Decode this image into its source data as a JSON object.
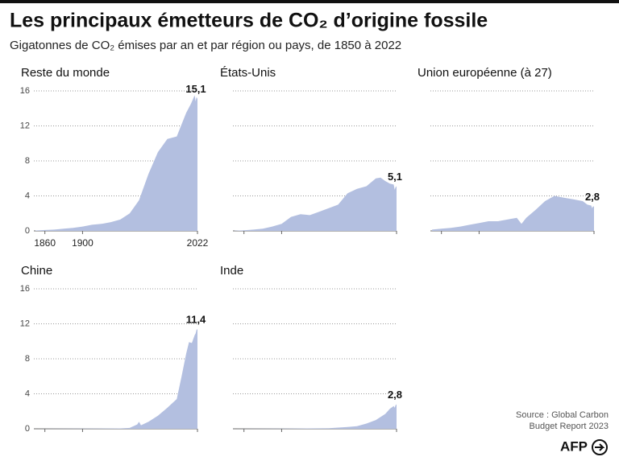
{
  "header": {
    "title": "Les principaux émetteurs de CO₂ d’origine fossile",
    "subtitle": "Gigatonnes de CO₂ émises par an et par région ou pays, de 1850 à 2022"
  },
  "chart_data": [
    {
      "type": "area",
      "title": "Reste du monde",
      "color": "#b3bfe0",
      "x": [
        1850,
        1860,
        1870,
        1880,
        1890,
        1900,
        1910,
        1920,
        1930,
        1940,
        1950,
        1960,
        1970,
        1980,
        1990,
        2000,
        2010,
        2015,
        2019,
        2020,
        2021,
        2022
      ],
      "values": [
        0.05,
        0.1,
        0.15,
        0.25,
        0.35,
        0.5,
        0.7,
        0.8,
        1.0,
        1.3,
        2.0,
        3.5,
        6.5,
        9.0,
        10.5,
        10.8,
        13.5,
        14.5,
        15.5,
        14.8,
        15.3,
        15.1
      ],
      "value_labels": [
        null,
        null,
        null,
        null,
        null,
        null,
        null,
        null,
        null,
        null,
        null,
        null,
        null,
        null,
        null,
        null,
        null,
        null,
        null,
        null,
        null,
        "15,1"
      ],
      "xlim": [
        1850,
        2022
      ],
      "xticks": [
        1860,
        1900,
        2022
      ],
      "ylim": [
        0,
        16
      ],
      "yticks": [
        0,
        4,
        8,
        12,
        16
      ],
      "grid": true
    },
    {
      "type": "area",
      "title": "États-Unis",
      "color": "#b3bfe0",
      "x": [
        1850,
        1860,
        1870,
        1880,
        1890,
        1900,
        1910,
        1920,
        1930,
        1940,
        1950,
        1960,
        1970,
        1980,
        1990,
        2000,
        2005,
        2010,
        2015,
        2019,
        2020,
        2021,
        2022
      ],
      "values": [
        0.03,
        0.06,
        0.15,
        0.25,
        0.5,
        0.8,
        1.6,
        1.9,
        1.8,
        2.2,
        2.6,
        3.0,
        4.3,
        4.8,
        5.1,
        6.0,
        6.1,
        5.7,
        5.4,
        5.3,
        4.7,
        5.0,
        5.1
      ],
      "value_labels": [
        null,
        null,
        null,
        null,
        null,
        null,
        null,
        null,
        null,
        null,
        null,
        null,
        null,
        null,
        null,
        null,
        null,
        null,
        null,
        null,
        null,
        null,
        "5,1"
      ],
      "xlim": [
        1850,
        2022
      ],
      "xticks": [
        1860,
        1900,
        2022
      ],
      "ylim": [
        0,
        16
      ],
      "yticks": [
        0,
        4,
        8,
        12,
        16
      ],
      "grid": true
    },
    {
      "type": "area",
      "title": "Union européenne (à 27)",
      "color": "#b3bfe0",
      "x": [
        1850,
        1860,
        1870,
        1880,
        1890,
        1900,
        1910,
        1920,
        1930,
        1940,
        1945,
        1950,
        1960,
        1970,
        1980,
        1990,
        2000,
        2010,
        2015,
        2019,
        2020,
        2021,
        2022
      ],
      "values": [
        0.15,
        0.25,
        0.35,
        0.5,
        0.7,
        0.9,
        1.1,
        1.1,
        1.3,
        1.5,
        0.8,
        1.5,
        2.4,
        3.4,
        4.0,
        3.8,
        3.6,
        3.4,
        3.0,
        2.9,
        2.6,
        2.8,
        2.8
      ],
      "value_labels": [
        null,
        null,
        null,
        null,
        null,
        null,
        null,
        null,
        null,
        null,
        null,
        null,
        null,
        null,
        null,
        null,
        null,
        null,
        null,
        null,
        null,
        null,
        "2,8"
      ],
      "xlim": [
        1850,
        2022
      ],
      "xticks": [
        1860,
        1900,
        2022
      ],
      "ylim": [
        0,
        16
      ],
      "yticks": [
        0,
        4,
        8,
        12,
        16
      ],
      "grid": true
    },
    {
      "type": "area",
      "title": "Chine",
      "color": "#b3bfe0",
      "x": [
        1850,
        1900,
        1940,
        1950,
        1958,
        1960,
        1962,
        1970,
        1980,
        1990,
        2000,
        2005,
        2010,
        2013,
        2016,
        2019,
        2020,
        2021,
        2022
      ],
      "values": [
        0.0,
        0.02,
        0.05,
        0.1,
        0.5,
        0.8,
        0.4,
        0.8,
        1.5,
        2.4,
        3.4,
        5.9,
        8.6,
        9.9,
        9.8,
        10.7,
        10.9,
        11.3,
        11.4
      ],
      "value_labels": [
        null,
        null,
        null,
        null,
        null,
        null,
        null,
        null,
        null,
        null,
        null,
        null,
        null,
        null,
        null,
        null,
        null,
        null,
        "11,4"
      ],
      "xlim": [
        1850,
        2022
      ],
      "xticks": [
        1860,
        1900,
        2022
      ],
      "ylim": [
        0,
        16
      ],
      "yticks": [
        0,
        4,
        8,
        12,
        16
      ],
      "grid": true
    },
    {
      "type": "area",
      "title": "Inde",
      "color": "#b3bfe0",
      "x": [
        1850,
        1900,
        1950,
        1970,
        1980,
        1990,
        2000,
        2010,
        2015,
        2019,
        2020,
        2021,
        2022
      ],
      "values": [
        0.0,
        0.02,
        0.06,
        0.2,
        0.3,
        0.6,
        1.0,
        1.7,
        2.3,
        2.6,
        2.4,
        2.7,
        2.8
      ],
      "value_labels": [
        null,
        null,
        null,
        null,
        null,
        null,
        null,
        null,
        null,
        null,
        null,
        null,
        "2,8"
      ],
      "xlim": [
        1850,
        2022
      ],
      "xticks": [
        1860,
        1900,
        2022
      ],
      "ylim": [
        0,
        16
      ],
      "yticks": [
        0,
        4,
        8,
        12,
        16
      ],
      "grid": true
    }
  ],
  "source": [
    "Source : Global Carbon",
    "Budget Report 2023"
  ],
  "logo": "AFP"
}
